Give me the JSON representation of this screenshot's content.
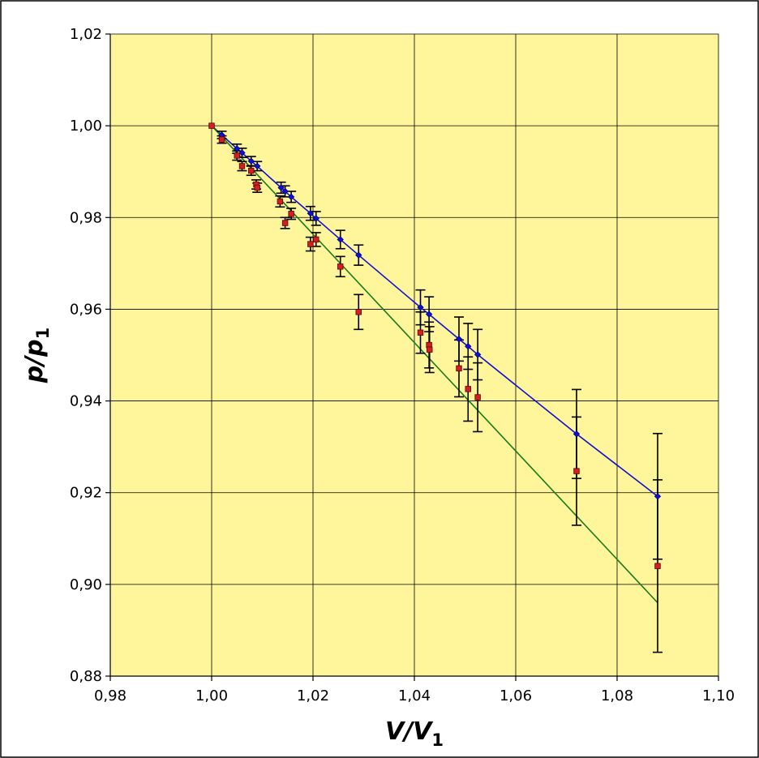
{
  "chart_data": {
    "type": "scatter",
    "xlabel": "V/V1",
    "ylabel": "p/p1",
    "xlabel_parts": {
      "main": "V/V",
      "sub": "1"
    },
    "ylabel_parts": {
      "main": "p/p",
      "sub": "1"
    },
    "xlim": [
      0.98,
      1.1
    ],
    "ylim": [
      0.88,
      1.02
    ],
    "x_ticks": [
      0.98,
      1.0,
      1.02,
      1.04,
      1.06,
      1.08,
      1.1
    ],
    "y_ticks": [
      0.88,
      0.9,
      0.92,
      0.94,
      0.96,
      0.98,
      1.0,
      1.02
    ],
    "x_tick_labels": [
      "0,98",
      "1,00",
      "1,02",
      "1,04",
      "1,06",
      "1,08",
      "1,10"
    ],
    "y_tick_labels": [
      "0,88",
      "0,90",
      "0,92",
      "0,94",
      "0,96",
      "0,98",
      "1,00",
      "1,02"
    ],
    "grid": true,
    "background_color": "#fff59a",
    "series": [
      {
        "marker": "diamond",
        "color": "#1010d0",
        "line_color": "#1010d0",
        "points": [
          {
            "x": 1.0,
            "y": 1.0,
            "err": 0.0
          },
          {
            "x": 1.002,
            "y": 0.998,
            "err": 0.0008
          },
          {
            "x": 1.005,
            "y": 0.995,
            "err": 0.001
          },
          {
            "x": 1.006,
            "y": 0.9941,
            "err": 0.001
          },
          {
            "x": 1.0078,
            "y": 0.9923,
            "err": 0.001
          },
          {
            "x": 1.009,
            "y": 0.9912,
            "err": 0.001
          },
          {
            "x": 1.0137,
            "y": 0.9865,
            "err": 0.0012
          },
          {
            "x": 1.0145,
            "y": 0.9857,
            "err": 0.0012
          },
          {
            "x": 1.0157,
            "y": 0.9845,
            "err": 0.0012
          },
          {
            "x": 1.0195,
            "y": 0.9809,
            "err": 0.0015
          },
          {
            "x": 1.0206,
            "y": 0.9798,
            "err": 0.0015
          },
          {
            "x": 1.0254,
            "y": 0.9752,
            "err": 0.002
          },
          {
            "x": 1.029,
            "y": 0.9718,
            "err": 0.0022
          },
          {
            "x": 1.0412,
            "y": 0.9604,
            "err": 0.0038
          },
          {
            "x": 1.0429,
            "y": 0.9589,
            "err": 0.0038
          },
          {
            "x": 1.0488,
            "y": 0.9535,
            "err": 0.0048
          },
          {
            "x": 1.0506,
            "y": 0.9519,
            "err": 0.005
          },
          {
            "x": 1.0525,
            "y": 0.9501,
            "err": 0.0055
          },
          {
            "x": 1.072,
            "y": 0.9328,
            "err": 0.0097
          },
          {
            "x": 1.088,
            "y": 0.9192,
            "err": 0.0137
          }
        ]
      },
      {
        "marker": "square",
        "color": "#d02020",
        "line_color": "#1a7a1a",
        "line": [
          [
            1.0,
            1.0
          ],
          [
            1.088,
            0.896
          ]
        ],
        "points": [
          {
            "x": 1.0,
            "y": 1.0,
            "err": 0.0
          },
          {
            "x": 1.002,
            "y": 0.997,
            "err": 0.0008
          },
          {
            "x": 1.005,
            "y": 0.9935,
            "err": 0.001
          },
          {
            "x": 1.006,
            "y": 0.9912,
            "err": 0.001
          },
          {
            "x": 1.0078,
            "y": 0.9902,
            "err": 0.001
          },
          {
            "x": 1.0088,
            "y": 0.9872,
            "err": 0.001
          },
          {
            "x": 1.009,
            "y": 0.9865,
            "err": 0.001
          },
          {
            "x": 1.0135,
            "y": 0.9835,
            "err": 0.0012
          },
          {
            "x": 1.0145,
            "y": 0.9788,
            "err": 0.0012
          },
          {
            "x": 1.0157,
            "y": 0.9808,
            "err": 0.0012
          },
          {
            "x": 1.0195,
            "y": 0.9742,
            "err": 0.0015
          },
          {
            "x": 1.0206,
            "y": 0.9752,
            "err": 0.0015
          },
          {
            "x": 1.0254,
            "y": 0.9693,
            "err": 0.0022
          },
          {
            "x": 1.029,
            "y": 0.9594,
            "err": 0.0038
          },
          {
            "x": 1.0412,
            "y": 0.9549,
            "err": 0.0045
          },
          {
            "x": 1.0429,
            "y": 0.9522,
            "err": 0.005
          },
          {
            "x": 1.043,
            "y": 0.9512,
            "err": 0.005
          },
          {
            "x": 1.0488,
            "y": 0.9471,
            "err": 0.0062
          },
          {
            "x": 1.0506,
            "y": 0.9426,
            "err": 0.007
          },
          {
            "x": 1.0525,
            "y": 0.9408,
            "err": 0.0075
          },
          {
            "x": 1.072,
            "y": 0.9247,
            "err": 0.0118
          },
          {
            "x": 1.088,
            "y": 0.904,
            "err": 0.0188
          }
        ]
      }
    ]
  }
}
